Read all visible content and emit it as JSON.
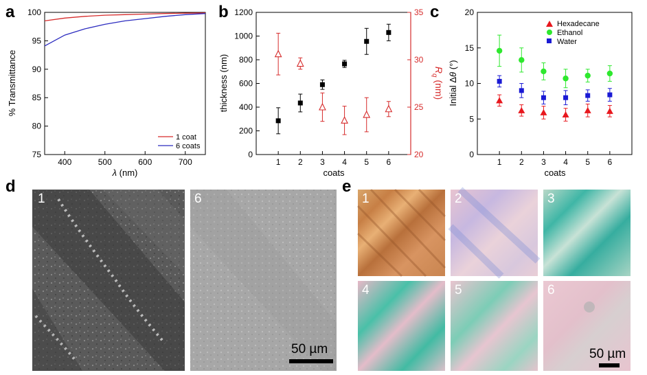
{
  "figure": {
    "panel_labels": [
      "a",
      "b",
      "c",
      "d",
      "e"
    ]
  },
  "chart_data": [
    {
      "panel": "a",
      "type": "line",
      "xlabel_symbol": "λ",
      "xlabel_unit": " (nm)",
      "ylabel": "% Transmittance",
      "xlim": [
        350,
        750
      ],
      "ylim": [
        75,
        100
      ],
      "xticks": [
        400,
        500,
        600,
        700
      ],
      "yticks": [
        75,
        80,
        85,
        90,
        95,
        100
      ],
      "legend_position": "bottom-right",
      "series": [
        {
          "name": "1 coat",
          "color": "#d62b2b",
          "x": [
            350,
            400,
            450,
            500,
            550,
            600,
            650,
            700,
            750
          ],
          "y": [
            98.5,
            99.0,
            99.3,
            99.5,
            99.6,
            99.7,
            99.8,
            99.85,
            99.9
          ]
        },
        {
          "name": "6 coats",
          "color": "#2b2bbf",
          "x": [
            350,
            400,
            450,
            500,
            550,
            600,
            650,
            700,
            750
          ],
          "y": [
            94.1,
            96.0,
            97.1,
            97.9,
            98.5,
            98.9,
            99.3,
            99.6,
            99.8
          ]
        }
      ]
    },
    {
      "panel": "b",
      "type": "scatter",
      "xlabel": "coats",
      "categories": [
        1,
        2,
        3,
        4,
        5,
        6
      ],
      "xlim": [
        0,
        7
      ],
      "y_left": {
        "label": "thickness (nm)",
        "ylim": [
          0,
          1200
        ],
        "ticks": [
          0,
          200,
          400,
          600,
          800,
          1000,
          1200
        ],
        "color": "#000000"
      },
      "y_right": {
        "label_symbol": "R",
        "label_sub": "q",
        "label_unit": " (nm)",
        "ylim": [
          20,
          35
        ],
        "ticks": [
          20,
          25,
          30,
          35
        ],
        "color": "#d62b2b"
      },
      "series": [
        {
          "name": "thickness",
          "axis": "left",
          "marker": "square-filled",
          "color": "#000000",
          "values": [
            285,
            435,
            590,
            765,
            955,
            1030
          ],
          "errors": [
            110,
            75,
            40,
            30,
            110,
            70
          ]
        },
        {
          "name": "Rq",
          "axis": "right",
          "marker": "triangle-open",
          "color": "#d62b2b",
          "values": [
            30.6,
            29.6,
            25.0,
            23.6,
            24.2,
            24.8
          ],
          "errors": [
            2.2,
            0.6,
            1.5,
            1.5,
            1.8,
            0.8
          ]
        }
      ]
    },
    {
      "panel": "c",
      "type": "scatter",
      "xlabel": "coats",
      "ylabel_prefix": "Initial ",
      "ylabel_delta": "Δ",
      "ylabel_theta": "θ",
      "ylabel_unit": " (°)",
      "categories": [
        1,
        2,
        3,
        4,
        5,
        6
      ],
      "xlim": [
        0,
        7
      ],
      "ylim": [
        0,
        20
      ],
      "yticks": [
        0,
        5,
        10,
        15,
        20
      ],
      "legend_position": "top-right",
      "series": [
        {
          "name": "Hexadecane",
          "marker": "triangle",
          "color": "#e8181e",
          "values": [
            7.6,
            6.2,
            5.9,
            5.6,
            6.2,
            6.1
          ],
          "errors": [
            0.8,
            0.8,
            0.9,
            0.9,
            0.9,
            0.8
          ]
        },
        {
          "name": "Ethanol",
          "marker": "circle",
          "color": "#2ee82e",
          "values": [
            14.6,
            13.3,
            11.7,
            10.7,
            11.1,
            11.4
          ],
          "errors": [
            2.2,
            1.7,
            1.2,
            1.3,
            0.9,
            1.1
          ]
        },
        {
          "name": "Water",
          "marker": "square",
          "color": "#1a1ad4",
          "values": [
            10.3,
            9.0,
            8.0,
            8.0,
            8.3,
            8.4
          ],
          "errors": [
            0.8,
            1.0,
            0.9,
            1.0,
            0.8,
            0.9
          ]
        }
      ]
    }
  ],
  "micrographs": {
    "d": {
      "numbers": [
        "1",
        "6"
      ],
      "scalebar": "50 µm"
    },
    "e": {
      "numbers": [
        "1",
        "2",
        "3",
        "4",
        "5",
        "6"
      ],
      "scalebar": "50 µm"
    }
  }
}
